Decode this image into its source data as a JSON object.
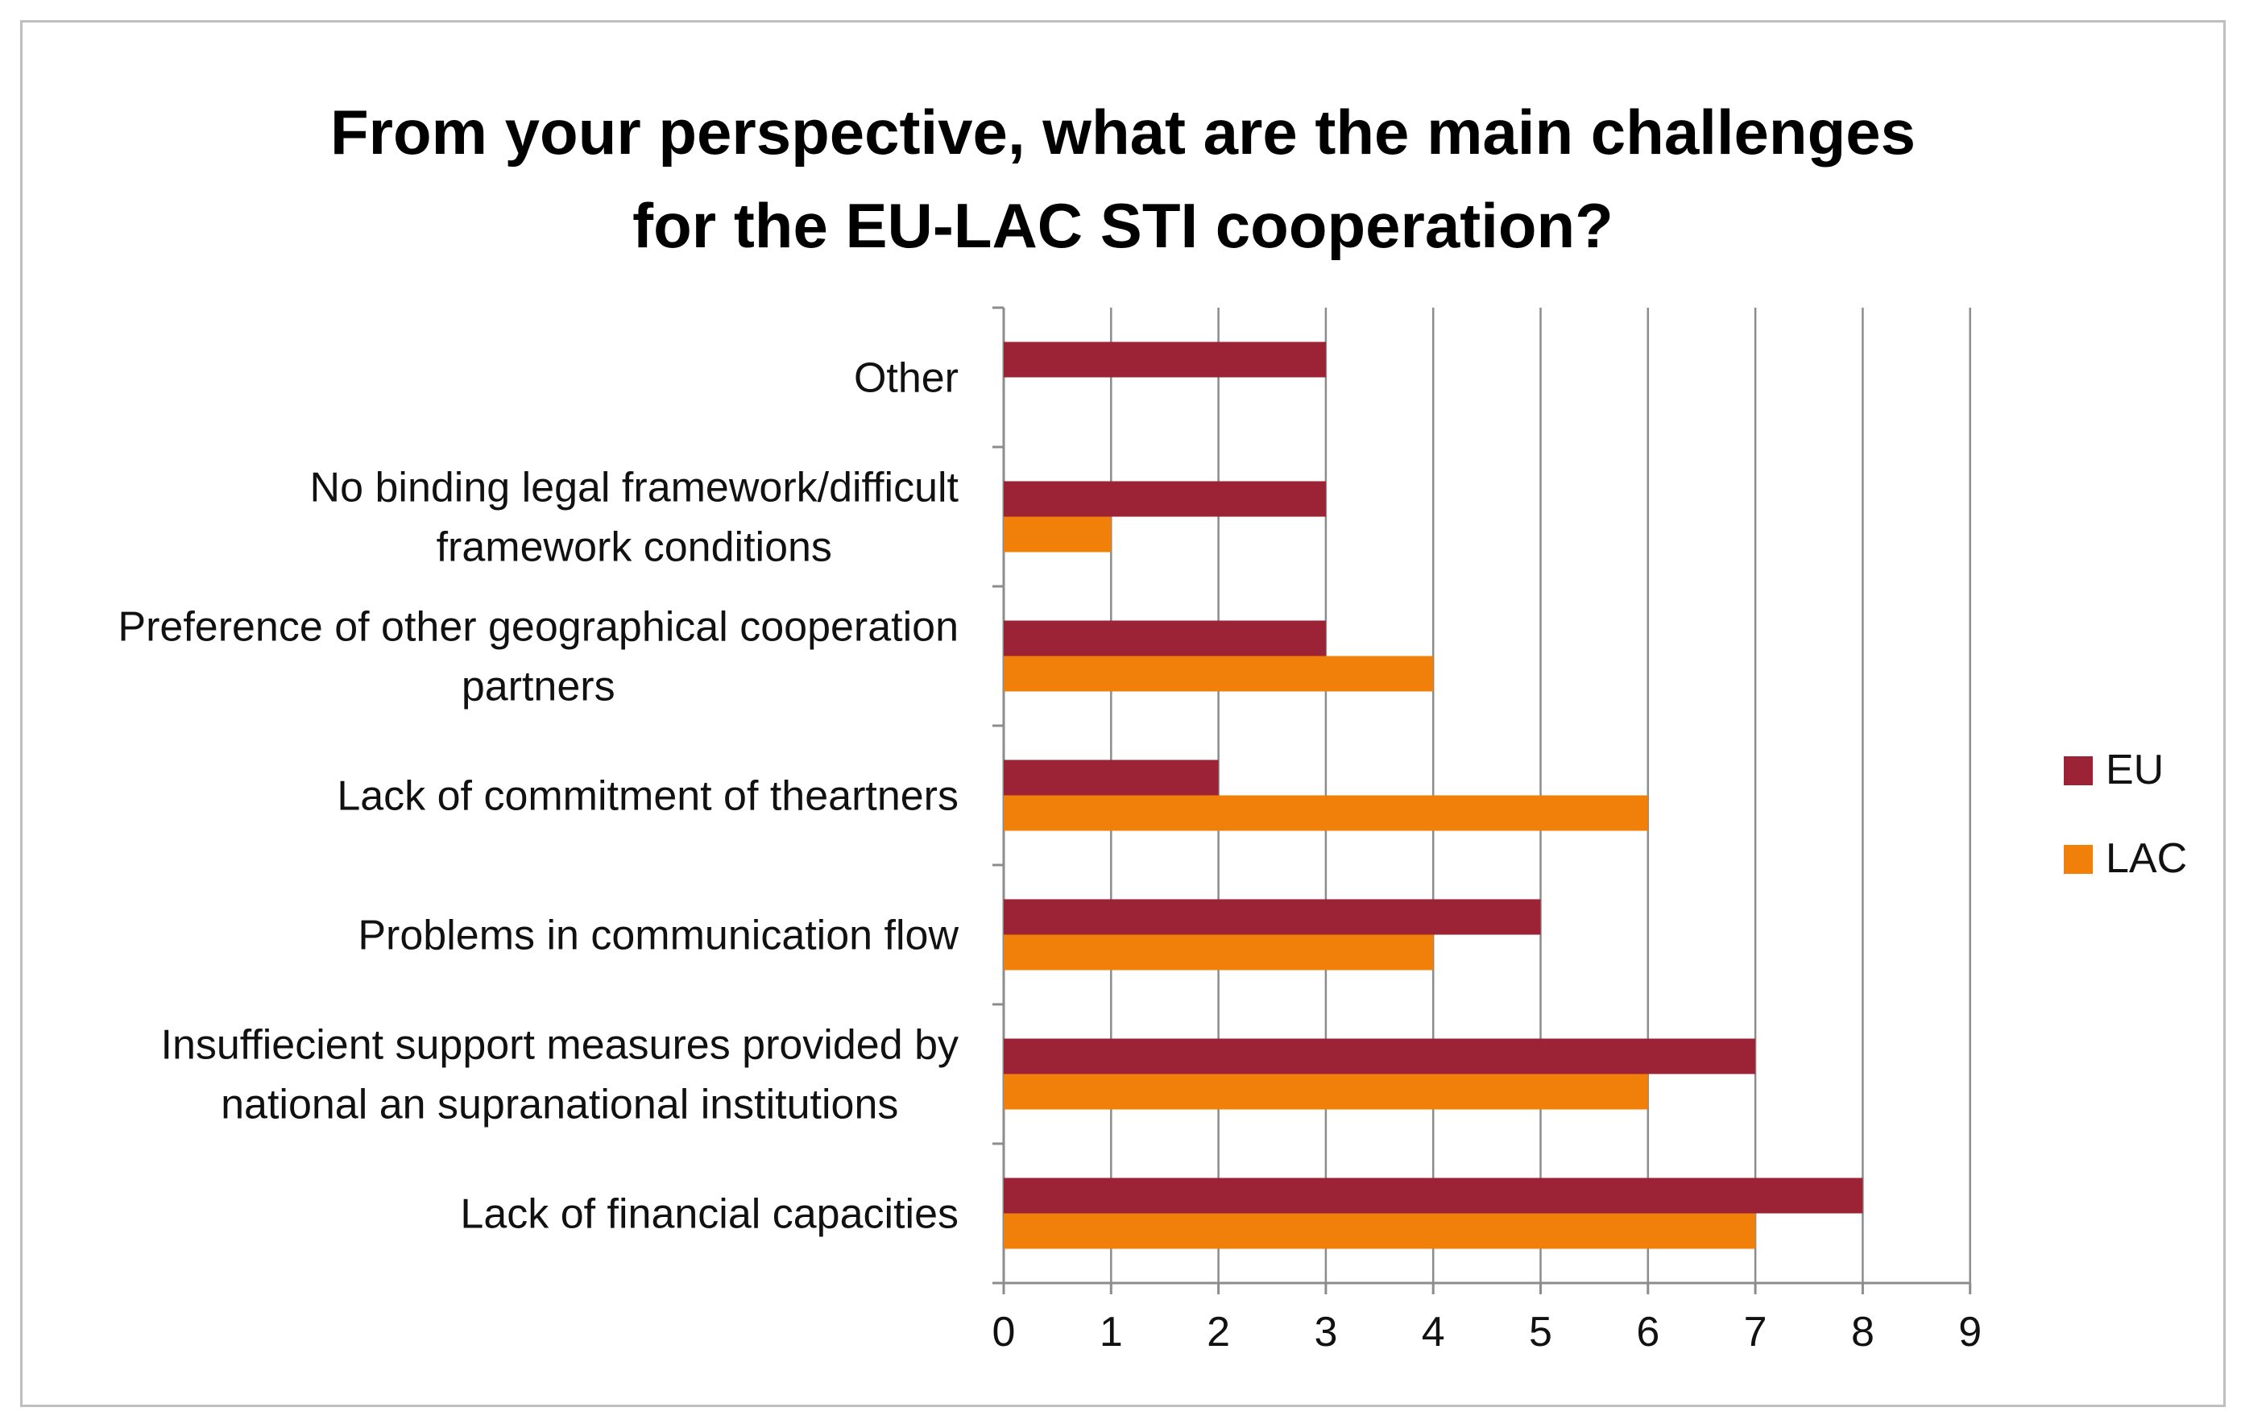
{
  "chart_data": {
    "type": "bar",
    "orientation": "horizontal",
    "title": "From your perspective, what are the main challenges for the EU-LAC STI cooperation?",
    "title_lines": [
      "From your perspective, what are the main challenges",
      "for the EU-LAC STI cooperation?"
    ],
    "categories": [
      "Other",
      "No binding legal framework/difficult framework conditions",
      "Preference of other geographical cooperation partners",
      "Lack of commitment of theartners",
      "Problems in communication flow",
      "Insuffiecient support measures provided by national an supranational institutions",
      "Lack of financial capacities"
    ],
    "category_lines": [
      [
        "Other"
      ],
      [
        "No binding legal framework/difficult",
        "framework conditions"
      ],
      [
        "Preference of other geographical cooperation",
        "partners"
      ],
      [
        "Lack of commitment of theartners"
      ],
      [
        "Problems in communication flow"
      ],
      [
        "Insuffiecient support measures provided by",
        "national an supranational institutions"
      ],
      [
        "Lack of financial capacities"
      ]
    ],
    "series": [
      {
        "name": "EU",
        "color": "#9b2335",
        "values": [
          3,
          3,
          3,
          2,
          5,
          7,
          8
        ]
      },
      {
        "name": "LAC",
        "color": "#f0800a",
        "values": [
          0,
          1,
          4,
          6,
          4,
          6,
          7
        ]
      }
    ],
    "xlim": [
      0,
      9
    ],
    "x_ticks": [
      "0",
      "1",
      "2",
      "3",
      "4",
      "5",
      "6",
      "7",
      "8",
      "9"
    ],
    "xlabel": "",
    "ylabel": "",
    "grid": "vertical gridlines",
    "legend_position": "right"
  }
}
